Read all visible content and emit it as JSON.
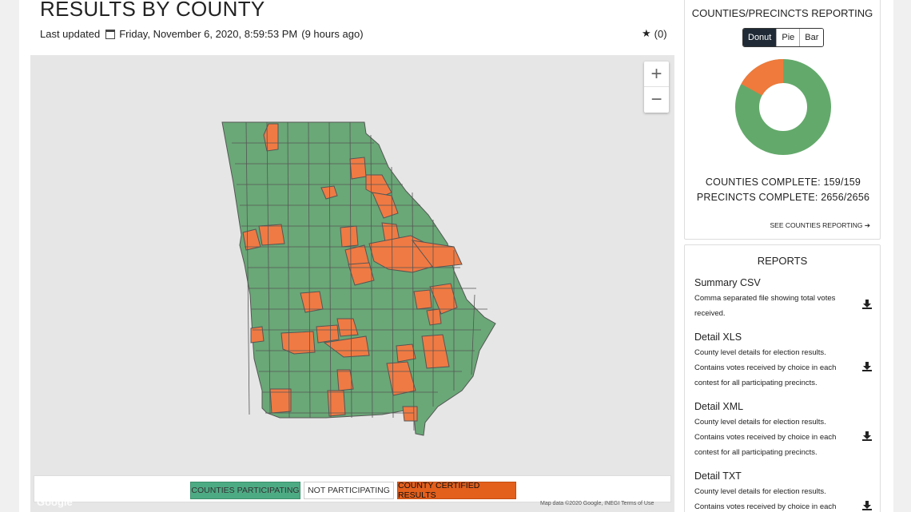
{
  "header": {
    "title": "RESULTS BY COUNTY",
    "updated_label": "Last updated",
    "updated_value": "Friday, November 6, 2020, 8:59:53 PM",
    "updated_ago": "(9 hours ago)",
    "favorites_count": "(0)"
  },
  "map": {
    "zoom_in": "+",
    "zoom_out": "−",
    "legend": {
      "participating": "COUNTIES PARTICIPATING",
      "not_participating": "NOT PARTICIPATING",
      "certified": "COUNTY CERTIFIED RESULTS"
    },
    "watermark": "Google",
    "attribution": "Map data ©2020 Google, INEGI    Terms of Use",
    "colors": {
      "participating": "#6aa877",
      "certified": "#f07a43",
      "border": "#555555"
    }
  },
  "reporting": {
    "title": "COUNTIES/PRECINCTS REPORTING",
    "chart_types": [
      "Donut",
      "Pie",
      "Bar"
    ],
    "active_chart": "Donut",
    "counties_complete": "COUNTIES COMPLETE: 159/159",
    "precincts_complete": "PRECINCTS COMPLETE: 2656/2656",
    "see_link": "SEE COUNTIES REPORTING ➔",
    "donut": {
      "green_fraction": 0.83,
      "orange_fraction": 0.17,
      "green": "#63a96b",
      "orange": "#ef7a3b"
    }
  },
  "reports": {
    "title": "REPORTS",
    "items": [
      {
        "name": "Summary CSV",
        "desc": "Comma separated file showing total votes received."
      },
      {
        "name": "Detail XLS",
        "desc": "County level details for election results. Contains votes received by choice in each contest for all participating precincts."
      },
      {
        "name": "Detail XML",
        "desc": "County level details for election results. Contains votes received by choice in each contest for all participating precincts."
      },
      {
        "name": "Detail TXT",
        "desc": "County level details for election results. Contains votes received by choice in each"
      }
    ]
  }
}
